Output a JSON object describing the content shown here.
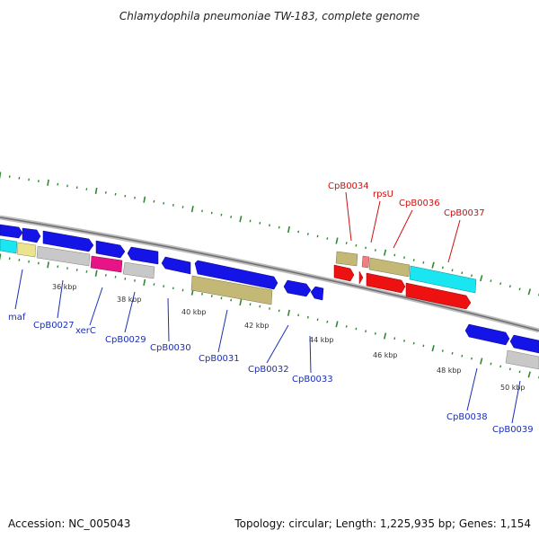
{
  "title": "Chlamydophila pneumoniae TW-183, complete genome",
  "footer": {
    "accession": "Accession: NC_005043",
    "summary": "Topology: circular; Length: 1,225,935 bp; Genes: 1,154"
  },
  "colors": {
    "blue_gene": "#1414e6",
    "red_gene": "#ee1111",
    "cyan_gene": "#19e6f0",
    "khaki_gene": "#c4b877",
    "grey_gene": "#c8c8c8",
    "magenta_gene": "#e61487",
    "yellow_gene": "#ece38f",
    "pink_gene": "#f08080",
    "backbone": "#8a8a8a",
    "ticks": "#2f8a2f",
    "label_blue": "#1c2fb5",
    "label_red": "#cc1111"
  },
  "scale_labels": [
    "36 kbp",
    "38 kbp",
    "40 kbp",
    "42 kbp",
    "44 kbp",
    "46 kbp",
    "48 kbp",
    "50 kbp"
  ],
  "gene_labels_outer": [
    "CpB0034",
    "rpsU",
    "CpB0036",
    "CpB0037"
  ],
  "gene_labels_inner": [
    "maf",
    "CpB0027",
    "xerC",
    "CpB0029",
    "CpB0030",
    "CpB0031",
    "CpB0032",
    "CpB0033",
    "CpB0038",
    "CpB0039"
  ]
}
